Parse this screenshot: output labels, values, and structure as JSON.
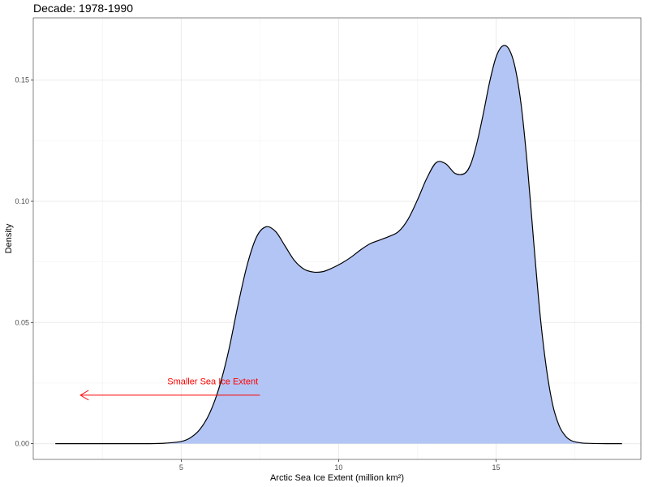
{
  "chart_data": {
    "type": "area",
    "title": "Decade: 1978-1990",
    "xlabel": "Arctic Sea Ice Extent (million km²)",
    "ylabel": "Density",
    "xlim": [
      0.3,
      19.6
    ],
    "ylim": [
      -0.0065,
      0.1757
    ],
    "x_ticks": [
      5,
      10,
      15
    ],
    "x_tick_labels": [
      "5",
      "10",
      "15"
    ],
    "y_ticks": [
      0,
      0.05,
      0.1,
      0.15
    ],
    "y_tick_labels": [
      "0.00",
      "0.05",
      "0.10",
      "0.15"
    ],
    "grid": true,
    "fill_color": "#b3c5f4",
    "line_color": "#000000",
    "series": [
      {
        "x": [
          1.0,
          2.0,
          3.0,
          4.0,
          4.5,
          5.0,
          5.3,
          5.6,
          5.9,
          6.2,
          6.5,
          6.8,
          7.1,
          7.4,
          7.7,
          8.0,
          8.3,
          8.6,
          8.9,
          9.2,
          9.5,
          9.8,
          10.1,
          10.4,
          10.7,
          11.0,
          11.3,
          11.6,
          11.9,
          12.2,
          12.5,
          12.8,
          13.1,
          13.4,
          13.7,
          14.0,
          14.2,
          14.4,
          14.6,
          14.8,
          15.0,
          15.2,
          15.4,
          15.6,
          15.8,
          16.0,
          16.2,
          16.4,
          16.6,
          16.8,
          17.0,
          17.2,
          17.4,
          17.7,
          18.0,
          18.5,
          19.0
        ],
        "y": [
          0.0,
          0.0,
          0.0,
          0.0,
          0.0002,
          0.0009,
          0.0025,
          0.006,
          0.0125,
          0.023,
          0.038,
          0.057,
          0.074,
          0.0855,
          0.0895,
          0.0875,
          0.0815,
          0.0755,
          0.072,
          0.0708,
          0.071,
          0.0725,
          0.0745,
          0.077,
          0.08,
          0.0825,
          0.084,
          0.0855,
          0.0875,
          0.0925,
          0.1005,
          0.1095,
          0.116,
          0.1155,
          0.1115,
          0.1115,
          0.1155,
          0.1245,
          0.1365,
          0.1495,
          0.1595,
          0.164,
          0.163,
          0.1555,
          0.1395,
          0.114,
          0.0825,
          0.053,
          0.031,
          0.016,
          0.0075,
          0.0032,
          0.0012,
          0.0003,
          0.0001,
          0.0,
          0.0
        ]
      }
    ],
    "annotations": [
      {
        "text": "Smaller Sea Ice Extent",
        "color": "#ff0000",
        "text_x": 6.0,
        "text_y": 0.0245,
        "arrow_from": [
          7.5,
          0.02
        ],
        "arrow_to": [
          1.8,
          0.02
        ]
      }
    ]
  }
}
